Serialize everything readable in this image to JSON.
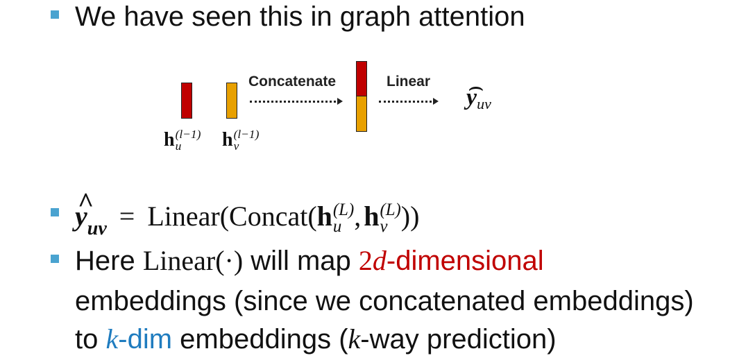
{
  "slide": {
    "bullet1": {
      "text": "We have seen this in graph attention"
    },
    "diagram": {
      "concatenate_label": "Concatenate",
      "linear_label": "Linear",
      "h_symbol": "h",
      "u_sub": "u",
      "v_sub": "v",
      "layer_sup": "(l−1)",
      "output_main": "y",
      "output_sub": "uv",
      "output_hat": "⌢",
      "colors": {
        "red": "#c00000",
        "orange": "#e8a000"
      }
    },
    "bullet2": {
      "lhs_main": "y",
      "lhs_hat": "^",
      "lhs_sub": "uv",
      "equals": "=",
      "linear": "Linear(Concat(",
      "h1": "h",
      "h1_sup": "(L)",
      "h1_sub": "u",
      "comma": ",",
      "h2": "h",
      "h2_sup": "(L)",
      "h2_sub": "v",
      "close": "))"
    },
    "bullet3": {
      "here": "Here",
      "linear_dot": "Linear(·)",
      "will_map": "will map",
      "two": "2",
      "d": "d",
      "dimensional": "-dimensional",
      "line2": "embeddings (since we concatenated embeddings)",
      "to": "to",
      "k1": "k",
      "dim": "-dim",
      "embeddings": "embeddings (",
      "k2": "k",
      "way": "-way prediction)"
    },
    "colors": {
      "bullet": "#4aa3d0",
      "red": "#c00000",
      "blue": "#1f7cbf"
    }
  }
}
